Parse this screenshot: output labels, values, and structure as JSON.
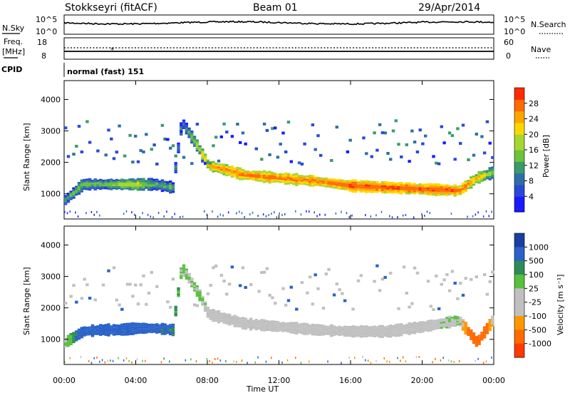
{
  "header": {
    "station": "Stokkseyri (fitACF)",
    "beam": "Beam 01",
    "date": "29/Apr/2014"
  },
  "strip_sky": {
    "left_label": "N.Sky",
    "right_label": "N.Search",
    "left_ticks": [
      "10^5",
      "10^0"
    ],
    "right_ticks": [
      "10^5",
      "10^0"
    ]
  },
  "strip_freq": {
    "left_label_1": "Freq.",
    "left_label_2": "[MHz]",
    "right_label": "Nave",
    "left_ticks": [
      "18",
      "8"
    ],
    "right_ticks": [
      "60",
      "0"
    ]
  },
  "cpid": {
    "label": "CPID",
    "mode": "normal (fast) 151"
  },
  "colors": {
    "power": [
      "#1a1aff",
      "#2a49d6",
      "#2e6fa8",
      "#3a9b6a",
      "#6cc23c",
      "#a6d631",
      "#ffd700",
      "#ffa500",
      "#ff6a00",
      "#ff2a00"
    ],
    "velocity": [
      "#1a3fa0",
      "#2a62c8",
      "#2e8b57",
      "#56c13c",
      "#c0c0c0",
      "#c0c0c0",
      "#ff9800",
      "#ff6a00",
      "#ff3a00"
    ]
  },
  "chart_data": [
    {
      "type": "heatmap",
      "panel": "power",
      "ylabel": "Slant Range [km]",
      "ylim": [
        200,
        4600
      ],
      "y_ticks": [
        "4000",
        "3000",
        "2000",
        "1000"
      ],
      "colorbar_label": "Power [dB]",
      "colorbar_ticks": [
        "28",
        "24",
        "20",
        "16",
        "12",
        "8",
        "4"
      ],
      "colorbar_range": [
        0,
        32
      ],
      "band": {
        "x_hours": [
          0,
          1,
          2,
          3,
          4,
          5,
          6,
          6.5,
          7.5,
          8,
          10,
          12,
          14,
          16,
          18,
          20,
          22,
          23,
          24
        ],
        "range_km": [
          800,
          1300,
          1300,
          1300,
          1300,
          1300,
          1200,
          3300,
          2400,
          1900,
          1600,
          1500,
          1400,
          1250,
          1200,
          1150,
          1100,
          1500,
          1700
        ],
        "power_db": [
          14,
          16,
          14,
          18,
          20,
          14,
          14,
          10,
          20,
          26,
          28,
          28,
          28,
          30,
          30,
          30,
          30,
          24,
          16
        ]
      }
    },
    {
      "type": "heatmap",
      "panel": "velocity",
      "ylabel": "Slant Range [km]",
      "ylim": [
        200,
        4600
      ],
      "y_ticks": [
        "4000",
        "3000",
        "2000",
        "1000"
      ],
      "xlabel": "Time UT",
      "x_ticks": [
        "00:00",
        "04:00",
        "08:00",
        "12:00",
        "16:00",
        "20:00",
        "00:00"
      ],
      "colorbar_label": "Velocity [m s⁻¹]",
      "colorbar_ticks": [
        "1000",
        "500",
        "100",
        "25",
        "-25",
        "-100",
        "-500",
        "-1000"
      ],
      "band": {
        "x_hours": [
          0,
          1,
          2,
          3,
          4,
          5,
          6,
          6.5,
          7.5,
          8,
          10,
          12,
          14,
          16,
          18,
          20,
          22,
          23,
          24
        ],
        "range_km": [
          900,
          1250,
          1300,
          1300,
          1350,
          1350,
          1300,
          3300,
          2400,
          1800,
          1500,
          1400,
          1300,
          1250,
          1250,
          1400,
          1600,
          900,
          1700
        ],
        "velocity": [
          25,
          150,
          120,
          130,
          140,
          120,
          100,
          25,
          25,
          0,
          0,
          0,
          0,
          0,
          0,
          0,
          25,
          -300,
          25
        ]
      }
    }
  ]
}
